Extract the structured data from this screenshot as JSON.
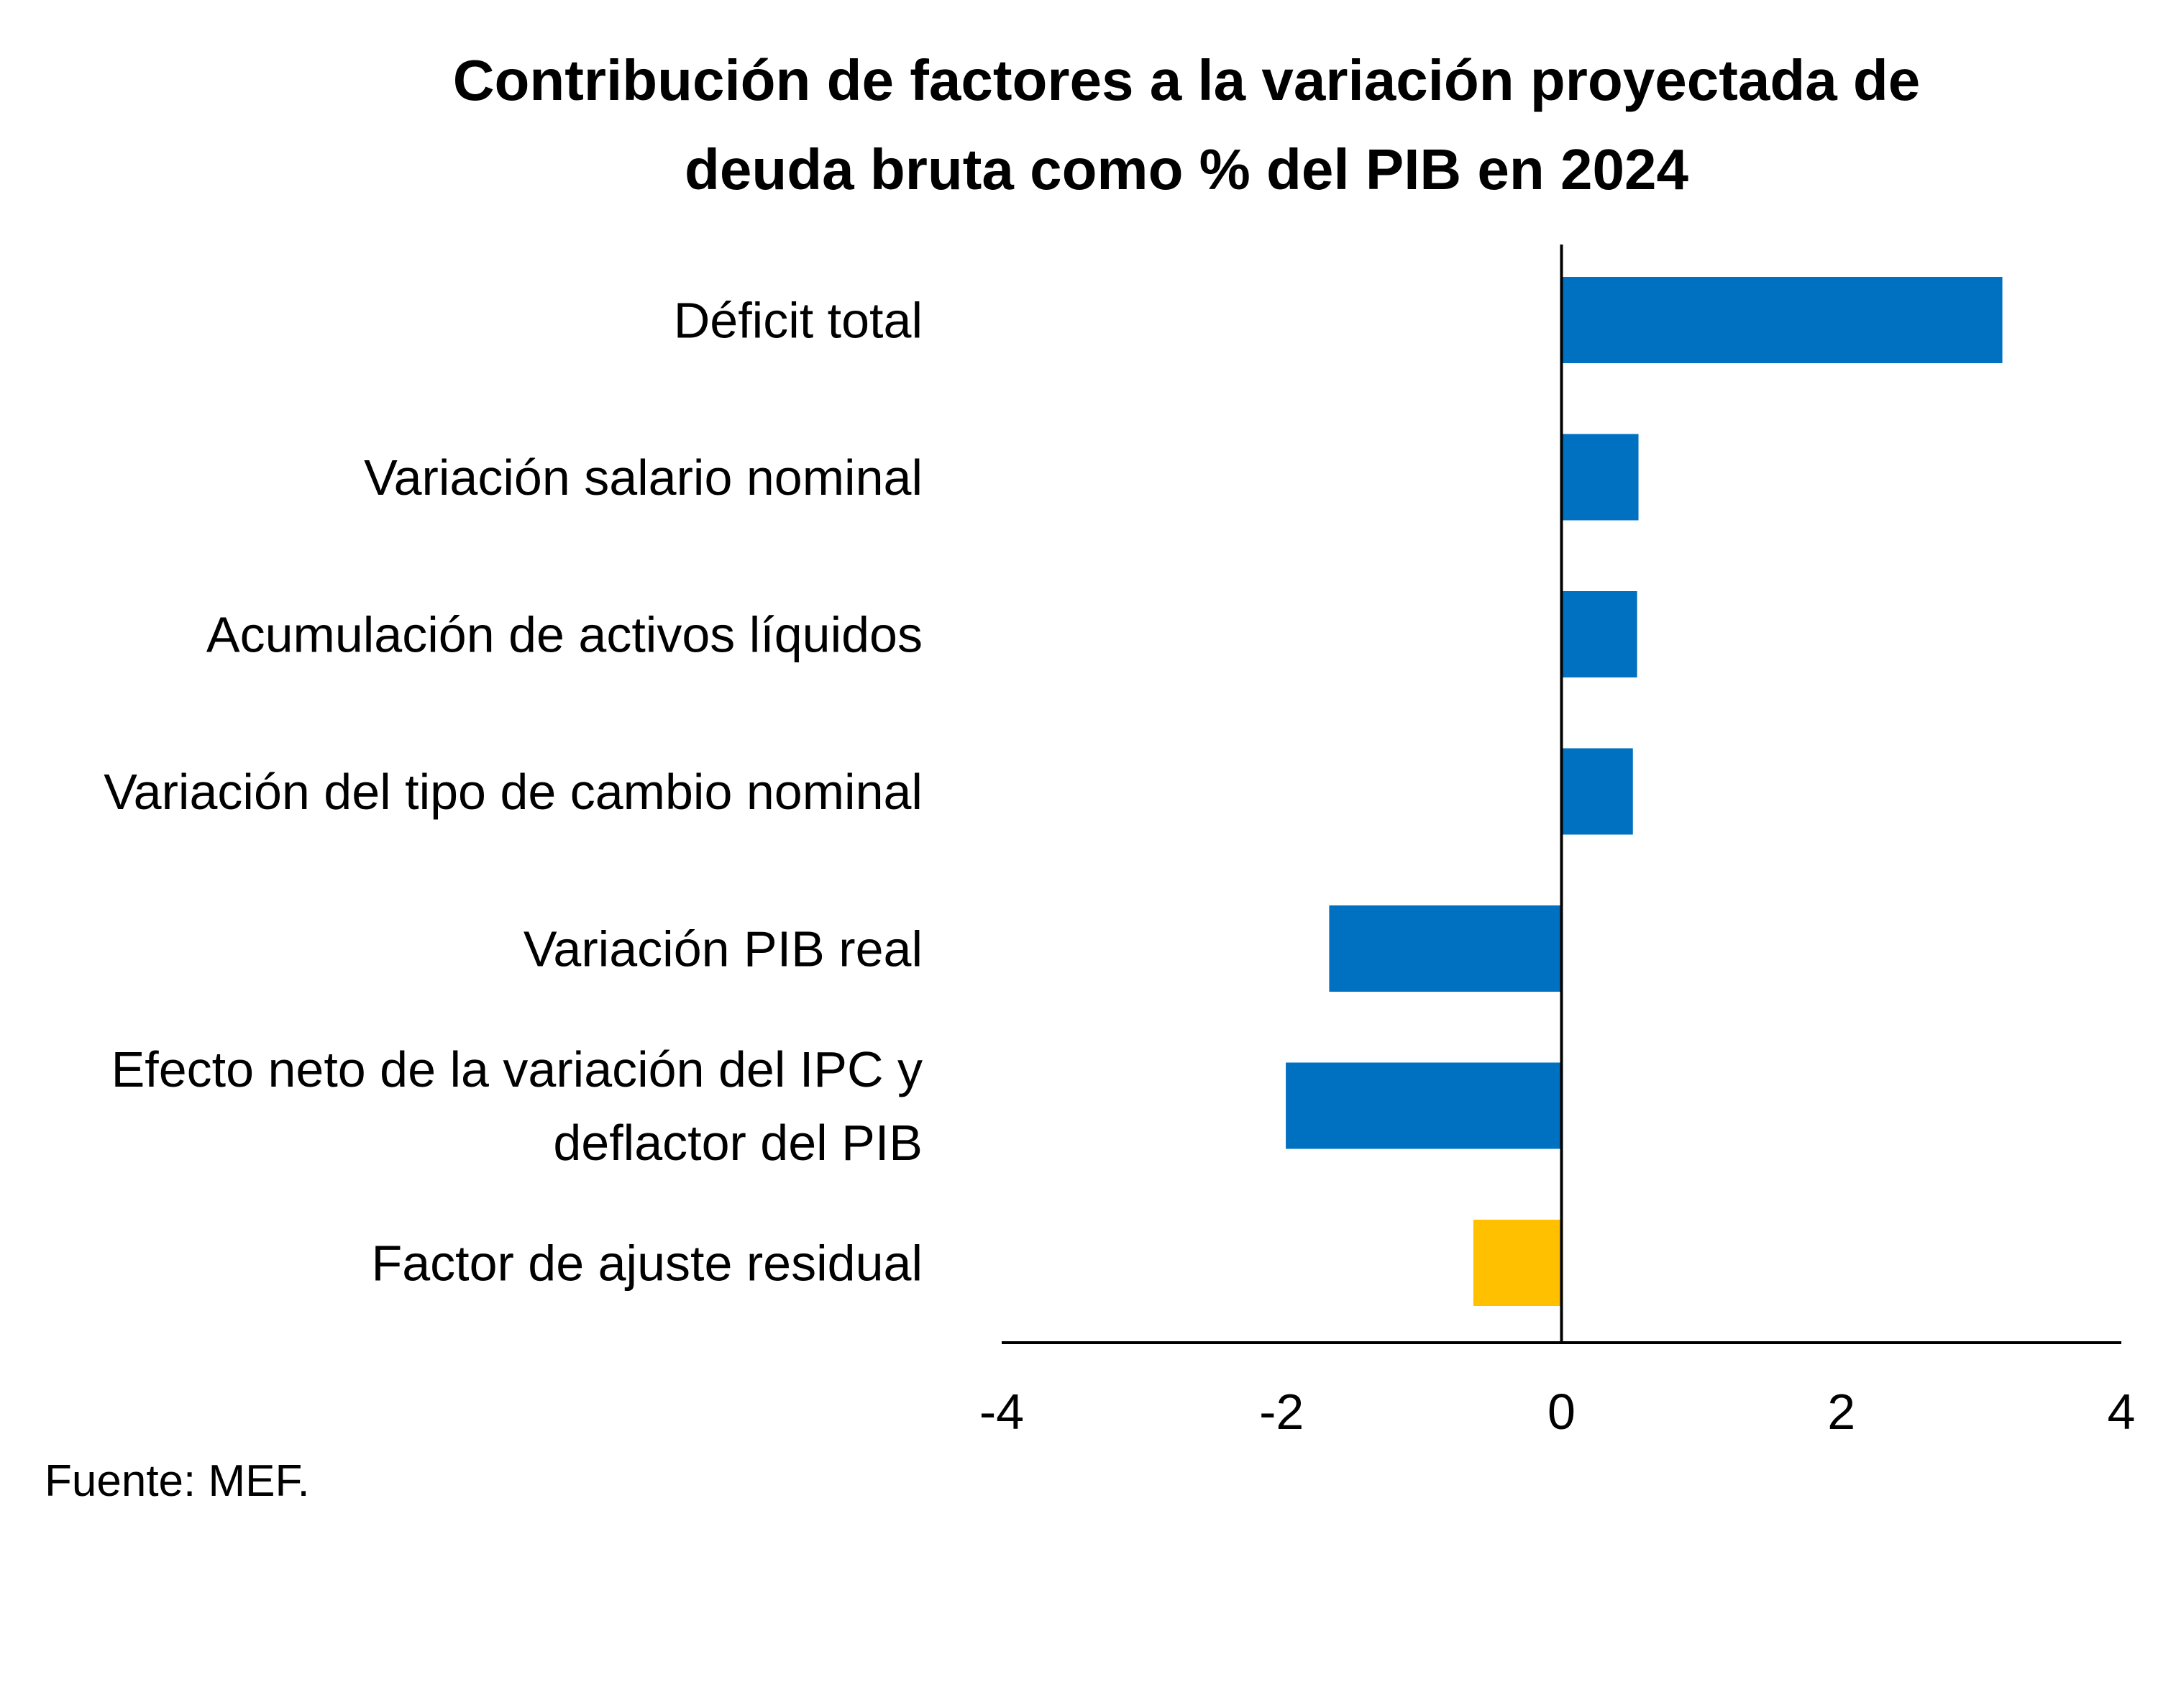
{
  "chart_data": {
    "type": "bar",
    "orientation": "horizontal",
    "title": "Contribución de factores a la variación proyectada de deuda bruta como % del PIB en 2024",
    "title_lines": [
      "Contribución de factores a la variación proyectada de",
      "deuda bruta como % del PIB en 2024"
    ],
    "categories": [
      "Déficit total",
      "Variación salario nominal",
      "Acumulación de activos líquidos",
      "Variación del tipo de cambio nominal",
      "Variación PIB real",
      "Efecto neto de la variación del IPC y deflactor del PIB",
      "Factor de ajuste residual"
    ],
    "category_lines": [
      [
        "Déficit total"
      ],
      [
        "Variación salario nominal"
      ],
      [
        "Acumulación de activos líquidos"
      ],
      [
        "Variación del tipo de cambio nominal"
      ],
      [
        "Variación PIB real"
      ],
      [
        "Efecto neto de la variación del IPC y",
        "deflactor del PIB"
      ],
      [
        "Factor de ajuste residual"
      ]
    ],
    "values": [
      3.15,
      0.55,
      0.54,
      0.51,
      -1.66,
      -1.97,
      -0.63
    ],
    "bar_colors": [
      "#0070C0",
      "#0070C0",
      "#0070C0",
      "#0070C0",
      "#0070C0",
      "#0070C0",
      "#FFC000"
    ],
    "xlim": [
      -4,
      4
    ],
    "xticks": [
      -4,
      -2,
      0,
      2,
      4
    ],
    "xtick_labels": [
      "-4",
      "-2",
      "0",
      "2",
      "4"
    ],
    "xlabel": "",
    "ylabel": "",
    "grid": false,
    "legend": "none"
  },
  "source": "Fuente: MEF."
}
